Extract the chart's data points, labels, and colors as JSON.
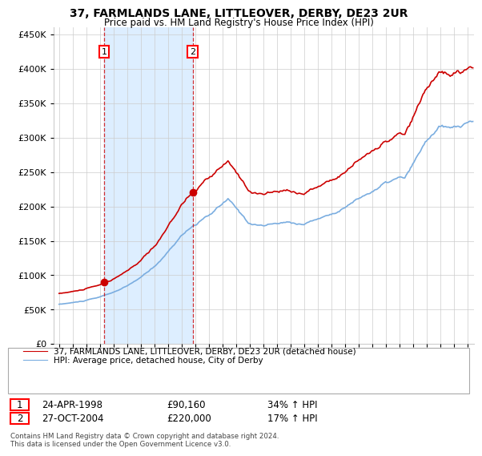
{
  "title": "37, FARMLANDS LANE, LITTLEOVER, DERBY, DE23 2UR",
  "subtitle": "Price paid vs. HM Land Registry's House Price Index (HPI)",
  "legend_line1": "37, FARMLANDS LANE, LITTLEOVER, DERBY, DE23 2UR (detached house)",
  "legend_line2": "HPI: Average price, detached house, City of Derby",
  "sale1_date": "24-APR-1998",
  "sale1_price": "£90,160",
  "sale1_hpi": "34% ↑ HPI",
  "sale1_year": 1998.31,
  "sale1_value": 90160,
  "sale2_date": "27-OCT-2004",
  "sale2_price": "£220,000",
  "sale2_hpi": "17% ↑ HPI",
  "sale2_year": 2004.82,
  "sale2_value": 220000,
  "red_color": "#cc0000",
  "blue_color": "#7aade0",
  "shade_color": "#ddeeff",
  "background_color": "#ffffff",
  "grid_color": "#cccccc",
  "footer": "Contains HM Land Registry data © Crown copyright and database right 2024.\nThis data is licensed under the Open Government Licence v3.0.",
  "ylim": [
    0,
    460000
  ],
  "yticks": [
    0,
    50000,
    100000,
    150000,
    200000,
    250000,
    300000,
    350000,
    400000,
    450000
  ]
}
